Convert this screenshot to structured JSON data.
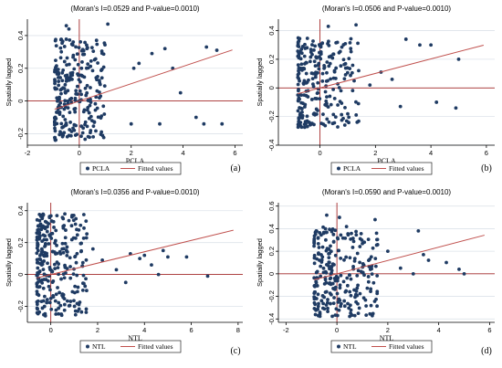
{
  "colors": {
    "points": "#1f3b63",
    "fit": "#c0504d",
    "refline": "#a52a2a",
    "axis": "#000000",
    "grid": "#dde3ea",
    "background": "#ffffff"
  },
  "chart_data": [
    {
      "type": "scatter",
      "tag": "(a)",
      "title": "(Moran's I=0.0529 and P-value=0.0010)",
      "xlabel": "PCLA",
      "ylabel": "Spatially lagged",
      "xlim": [
        -2,
        6.3
      ],
      "ylim": [
        -0.27,
        0.5
      ],
      "xticks": [
        -2,
        0,
        2,
        4,
        6
      ],
      "yticks": [
        -0.2,
        0,
        0.2,
        0.4
      ],
      "ytick_labels": [
        "-0.2",
        "0",
        "0.2",
        "0.4"
      ],
      "grid": true,
      "legend": [
        "PCLA",
        "Fitted values"
      ],
      "legend_position": "bottom",
      "fit": {
        "slope": 0.0529,
        "intercept": 0.0
      },
      "cloud": {
        "xmin": -0.95,
        "xmax": 1.0,
        "ymin": -0.24,
        "ymax": 0.38,
        "n": 260,
        "seed": 11
      },
      "points": [
        [
          -0.5,
          0.46
        ],
        [
          -0.4,
          0.44
        ],
        [
          1.1,
          0.47
        ],
        [
          2.3,
          0.23
        ],
        [
          2.8,
          0.29
        ],
        [
          3.3,
          0.32
        ],
        [
          3.6,
          0.2
        ],
        [
          4.9,
          0.33
        ],
        [
          5.3,
          0.31
        ],
        [
          5.5,
          -0.14
        ],
        [
          4.5,
          -0.1
        ],
        [
          4.8,
          -0.14
        ],
        [
          3.1,
          -0.14
        ],
        [
          2.0,
          -0.14
        ],
        [
          2.1,
          0.2
        ],
        [
          3.9,
          0.05
        ]
      ]
    },
    {
      "type": "scatter",
      "tag": "(b)",
      "title": "(Moran's I=0.0506 and P-value=0.0010)",
      "xlabel": "PCLA",
      "ylabel": "Spatially lagged",
      "xlim": [
        -1.5,
        6.3
      ],
      "ylim": [
        -0.4,
        0.48
      ],
      "xticks": [
        0,
        2,
        4,
        6
      ],
      "yticks": [
        -0.4,
        -0.2,
        0,
        0.2,
        0.4
      ],
      "ytick_labels": [
        "-0.4",
        "-0.2",
        "0",
        "0.2",
        "0.4"
      ],
      "grid": true,
      "legend": [
        "PCLA",
        "Fitted values"
      ],
      "legend_position": "bottom",
      "fit": {
        "slope": 0.0506,
        "intercept": 0.0
      },
      "cloud": {
        "xmin": -0.8,
        "xmax": 1.4,
        "ymin": -0.28,
        "ymax": 0.35,
        "n": 250,
        "seed": 23
      },
      "points": [
        [
          0.3,
          0.43
        ],
        [
          1.3,
          0.44
        ],
        [
          3.6,
          0.3
        ],
        [
          4.0,
          0.3
        ],
        [
          3.1,
          0.34
        ],
        [
          5.0,
          0.2
        ],
        [
          4.2,
          -0.1
        ],
        [
          4.9,
          -0.14
        ],
        [
          2.9,
          -0.13
        ],
        [
          2.2,
          0.11
        ],
        [
          1.8,
          0.02
        ],
        [
          2.6,
          0.06
        ]
      ]
    },
    {
      "type": "scatter",
      "tag": "(c)",
      "title": "(Moran's I=0.0356 and P-value=0.0010)",
      "xlabel": "NTL",
      "ylabel": "Spatially lagged",
      "xlim": [
        -1.0,
        8.2
      ],
      "ylim": [
        -0.3,
        0.45
      ],
      "xticks": [
        0,
        2,
        4,
        6,
        8
      ],
      "yticks": [
        -0.2,
        0,
        0.2,
        0.4
      ],
      "ytick_labels": [
        "-0.2",
        "0",
        "0.2",
        "0.4"
      ],
      "grid": true,
      "legend": [
        "NTL",
        "Fitted values"
      ],
      "legend_position": "bottom",
      "fit": {
        "slope": 0.0356,
        "intercept": 0.0
      },
      "cloud": {
        "xmin": -0.6,
        "xmax": 1.6,
        "ymin": -0.26,
        "ymax": 0.38,
        "n": 280,
        "seed": 37
      },
      "points": [
        [
          0.6,
          0.38
        ],
        [
          1.8,
          0.16
        ],
        [
          2.2,
          0.09
        ],
        [
          3.8,
          0.1
        ],
        [
          4.0,
          0.12
        ],
        [
          4.3,
          0.06
        ],
        [
          4.8,
          0.15
        ],
        [
          5.0,
          0.11
        ],
        [
          5.8,
          0.11
        ],
        [
          4.6,
          0.0
        ],
        [
          3.2,
          -0.05
        ],
        [
          6.7,
          -0.01
        ],
        [
          2.8,
          0.03
        ],
        [
          3.4,
          0.13
        ]
      ]
    },
    {
      "type": "scatter",
      "tag": "(d)",
      "title": "(Moran's I=0.0590 and P-value=0.0010)",
      "xlabel": "NTL",
      "ylabel": "Spatially lagged",
      "xlim": [
        -2.3,
        6.2
      ],
      "ylim": [
        -0.43,
        0.63
      ],
      "xticks": [
        -2,
        0,
        2,
        4,
        6
      ],
      "yticks": [
        -0.4,
        -0.2,
        0,
        0.2,
        0.4,
        0.6
      ],
      "ytick_labels": [
        "-0.4",
        "-0.2",
        "0",
        "0.2",
        "0.4",
        "0.6"
      ],
      "grid": true,
      "legend": [
        "NTL",
        "Fitted values"
      ],
      "legend_position": "bottom",
      "fit": {
        "slope": 0.059,
        "intercept": 0.0
      },
      "cloud": {
        "xmin": -0.9,
        "xmax": 1.6,
        "ymin": -0.38,
        "ymax": 0.42,
        "n": 270,
        "seed": 51
      },
      "points": [
        [
          -0.4,
          0.52
        ],
        [
          0.1,
          0.5
        ],
        [
          1.5,
          0.48
        ],
        [
          3.2,
          0.38
        ],
        [
          3.6,
          0.12
        ],
        [
          4.3,
          0.1
        ],
        [
          4.8,
          0.04
        ],
        [
          5.0,
          0.0
        ],
        [
          3.0,
          0.0
        ],
        [
          2.5,
          0.05
        ],
        [
          2.0,
          0.2
        ],
        [
          3.4,
          0.17
        ]
      ]
    }
  ]
}
